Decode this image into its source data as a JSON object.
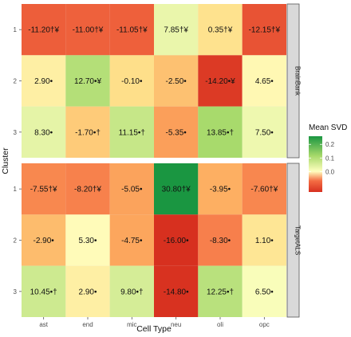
{
  "chart_data": {
    "type": "heatmap",
    "xlabel": "Cell Type",
    "ylabel": "Cluster",
    "x_categories": [
      "ast",
      "end",
      "mic",
      "neu",
      "oli",
      "opc"
    ],
    "y_categories": [
      "1",
      "2",
      "3"
    ],
    "legend": {
      "title": "Mean SVD",
      "ticks": [
        "0.2",
        "0.1",
        "0.0"
      ],
      "tick_values": [
        0.2,
        0.1,
        0.0
      ],
      "range": [
        -0.15,
        0.26
      ],
      "colors": {
        "low": "#d7301f",
        "mid": "#ffffbf",
        "high": "#1a9641"
      }
    },
    "facets": [
      {
        "name": "BrainBank",
        "values": [
          [
            -0.112,
            -0.11,
            -0.1105,
            0.0785,
            0.0035,
            -0.1215
          ],
          [
            0.029,
            0.127,
            -0.001,
            -0.025,
            -0.142,
            0.0465
          ],
          [
            0.083,
            -0.017,
            0.1115,
            -0.0535,
            0.1385,
            0.075
          ]
        ],
        "labels": [
          [
            "-11.20†¥",
            "-11.00†¥",
            "-11.05†¥",
            "7.85†¥",
            "0.35†¥",
            "-12.15†¥"
          ],
          [
            "2.90•",
            "12.70•¥",
            "-0.10•",
            "-2.50•",
            "-14.20•¥",
            "4.65•"
          ],
          [
            "8.30•",
            "-1.70•†",
            "11.15•†",
            "-5.35•",
            "13.85•†",
            "7.50•"
          ]
        ]
      },
      {
        "name": "TargetALS",
        "values": [
          [
            -0.0755,
            -0.082,
            -0.0505,
            0.308,
            -0.0395,
            -0.076
          ],
          [
            -0.029,
            0.053,
            -0.0475,
            -0.16,
            -0.083,
            0.011
          ],
          [
            0.1045,
            0.029,
            0.098,
            -0.148,
            0.1225,
            0.065
          ]
        ],
        "labels": [
          [
            "-7.55†¥",
            "-8.20†¥",
            "-5.05•",
            "30.80†¥",
            "-3.95•",
            "-7.60†¥"
          ],
          [
            "-2.90•",
            "5.30•",
            "-4.75•",
            "-16.00•",
            "-8.30•",
            "1.10•"
          ],
          [
            "10.45•†",
            "2.90•",
            "9.80•†",
            "-14.80•",
            "12.25•†",
            "6.50•"
          ]
        ]
      }
    ]
  }
}
